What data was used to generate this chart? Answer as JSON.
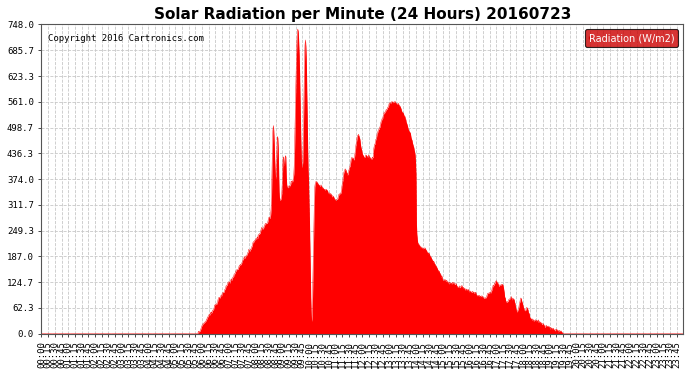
{
  "title": "Solar Radiation per Minute (24 Hours) 20160723",
  "copyright_text": "Copyright 2016 Cartronics.com",
  "legend_label": "Radiation (W/m2)",
  "ylim": [
    0.0,
    748.0
  ],
  "yticks": [
    0.0,
    62.3,
    124.7,
    187.0,
    249.3,
    311.7,
    374.0,
    436.3,
    498.7,
    561.0,
    623.3,
    685.7,
    748.0
  ],
  "fill_color": "#FF0000",
  "line_color": "#FF0000",
  "background_color": "#FFFFFF",
  "grid_color": "#C8C8C8",
  "legend_bg": "#CC0000",
  "legend_text_color": "#FFFFFF",
  "hline_color": "#FF0000",
  "title_fontsize": 11,
  "tick_fontsize": 6.5,
  "xlabel_rotation": 90,
  "figsize": [
    6.9,
    3.75
  ],
  "dpi": 100
}
